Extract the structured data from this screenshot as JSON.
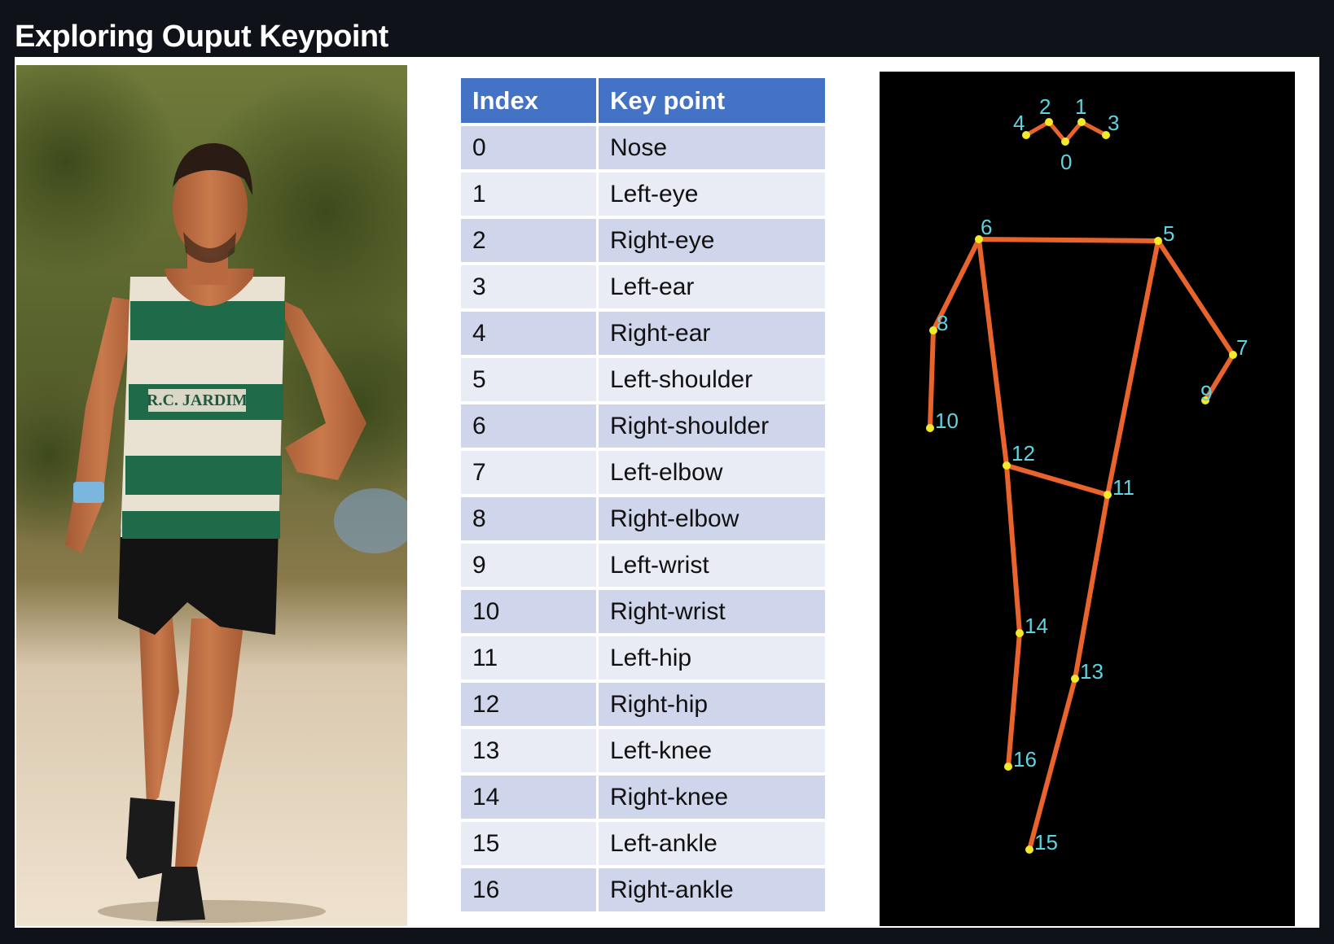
{
  "header": {
    "title": "Exploring Ouput Keypoint"
  },
  "photo": {
    "jersey_text": "R.C. JARDIM",
    "subject": "runner"
  },
  "table": {
    "headers": {
      "index": "Index",
      "keypoint": "Key point"
    },
    "rows": [
      {
        "index": "0",
        "keypoint": "Nose"
      },
      {
        "index": "1",
        "keypoint": "Left-eye"
      },
      {
        "index": "2",
        "keypoint": "Right-eye"
      },
      {
        "index": "3",
        "keypoint": "Left-ear"
      },
      {
        "index": "4",
        "keypoint": "Right-ear"
      },
      {
        "index": "5",
        "keypoint": "Left-shoulder"
      },
      {
        "index": "6",
        "keypoint": "Right-shoulder"
      },
      {
        "index": "7",
        "keypoint": "Left-elbow"
      },
      {
        "index": "8",
        "keypoint": "Right-elbow"
      },
      {
        "index": "9",
        "keypoint": "Left-wrist"
      },
      {
        "index": "10",
        "keypoint": "Right-wrist"
      },
      {
        "index": "11",
        "keypoint": "Left-hip"
      },
      {
        "index": "12",
        "keypoint": "Right-hip"
      },
      {
        "index": "13",
        "keypoint": "Left-knee"
      },
      {
        "index": "14",
        "keypoint": "Right-knee"
      },
      {
        "index": "15",
        "keypoint": "Left-ankle"
      },
      {
        "index": "16",
        "keypoint": "Right-ankle"
      }
    ]
  },
  "skeleton": {
    "labels": [
      "0",
      "1",
      "2",
      "3",
      "4",
      "5",
      "6",
      "7",
      "8",
      "9",
      "10",
      "11",
      "12",
      "13",
      "14",
      "15",
      "16"
    ],
    "colors": {
      "background": "#000000",
      "limb": "#e8642c",
      "joint": "#f2ea2a",
      "label": "#5fd3e0"
    }
  },
  "colors": {
    "page_bg": "#0f1218",
    "table_header": "#4472c4",
    "row_odd": "#cfd5ea",
    "row_even": "#e9ecf5"
  }
}
